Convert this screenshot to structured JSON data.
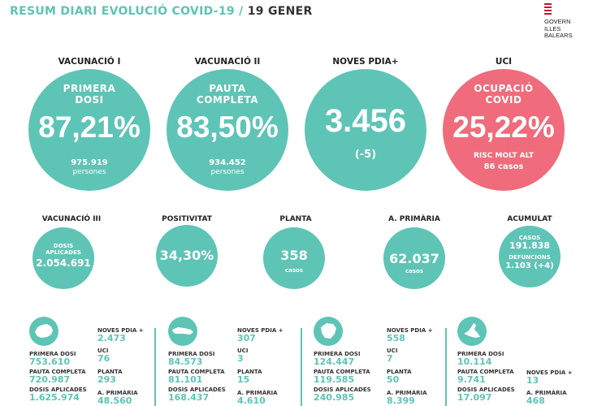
{
  "header": {
    "title_main": "RESUM DIARI EVOLUCIÓ COVID-19 /",
    "title_date": "19 GENER"
  },
  "logo": {
    "line1": "GOVERN",
    "line2": "ILLES",
    "line3": "BALEARS"
  },
  "big": [
    {
      "label": "VACUNACIÓ I",
      "inner1": "PRIMERA",
      "inner2": "DOSI",
      "value": "87,21%",
      "sub1": "975.919",
      "sub2": "persones"
    },
    {
      "label": "VACUNACIÓ II",
      "inner1": "PAUTA",
      "inner2": "COMPLETA",
      "value": "83,50%",
      "sub1": "934.452",
      "sub2": "persones"
    },
    {
      "label": "NOVES PDIA+",
      "value": "3.456",
      "sub1": "(-5)"
    },
    {
      "label": "UCI",
      "inner1": "OCUPACIÓ",
      "inner2": "COVID",
      "value": "25,22%",
      "sub1": "RISC MOLT ALT",
      "sub2": "86  casos"
    }
  ],
  "small": [
    {
      "label": "VACUNACIÓ III",
      "l1": "DOSIS",
      "l2": "APLICADES",
      "value": "2.054.691"
    },
    {
      "label": "POSITIVITAT",
      "value": "34,30%"
    },
    {
      "label": "PLANTA",
      "value": "358",
      "unit": "casos"
    },
    {
      "label": "A. PRIMÀRIA",
      "value": "62.037",
      "unit": "casos"
    },
    {
      "label": "ACUMULAT",
      "l1": "CASOS",
      "v1": "191.838",
      "l2": "DEFUNCIONS",
      "v2": "1.103 (+4)"
    }
  ],
  "islands": [
    {
      "name": "mallorca-icon",
      "primera": "753.610",
      "pauta": "720.987",
      "dosis": "1.625.974",
      "pdia": "2.473",
      "uci": "76",
      "planta": "293",
      "aprim": "48.560"
    },
    {
      "name": "menorca-icon",
      "primera": "84.573",
      "pauta": "81.101",
      "dosis": "168.437",
      "pdia": "307",
      "uci": "3",
      "planta": "15",
      "aprim": "4.610"
    },
    {
      "name": "eivissa-icon",
      "primera": "124.447",
      "pauta": "119.585",
      "dosis": "240.985",
      "pdia": "558",
      "uci": "7",
      "planta": "50",
      "aprim": "8.399"
    },
    {
      "name": "formentera-icon",
      "primera": "10.114",
      "pauta": "9.741",
      "dosis": "17.097",
      "pdia": "13",
      "aprim": "468"
    }
  ],
  "labels": {
    "primera": "PRIMERA DOSI",
    "pauta": "PAUTA COMPLETA",
    "dosis": "DOSIS APLICADES",
    "pdia": "NOVES PDIA +",
    "uci": "UCI",
    "planta": "PLANTA",
    "aprim": "A. PRIMÀRIA"
  },
  "colors": {
    "teal": "#5ec4b6",
    "red": "#f06b7b"
  }
}
